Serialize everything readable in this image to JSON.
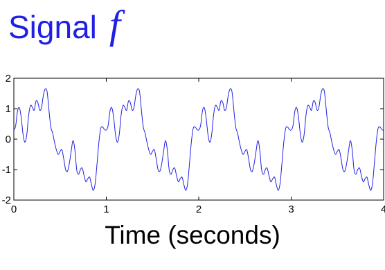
{
  "chart_data": {
    "type": "line",
    "title": "Signal",
    "title_symbol": "f",
    "xlabel": "Time (seconds)",
    "ylabel": "",
    "xlim": [
      0,
      4
    ],
    "ylim": [
      -2,
      2
    ],
    "xticks": [
      0,
      1,
      2,
      3,
      4
    ],
    "xtick_labels": [
      "0",
      "1",
      "2",
      "3",
      "4"
    ],
    "yticks": [
      2,
      1,
      0,
      -1,
      -2
    ],
    "ytick_labels": [
      "2",
      "1",
      "0",
      "-1",
      "-2"
    ],
    "grid": false,
    "line_color": "#1f1fe6",
    "series": [
      {
        "x": [
          0,
          0.02,
          0.04,
          0.06,
          0.08,
          0.1,
          0.12,
          0.14,
          0.16,
          0.18,
          0.2,
          0.22,
          0.24,
          0.26,
          0.28,
          0.3,
          0.32,
          0.34,
          0.36,
          0.38,
          0.4,
          0.42,
          0.44,
          0.46,
          0.48,
          0.5,
          0.52,
          0.54,
          0.56,
          0.58,
          0.6,
          0.62,
          0.64,
          0.66,
          0.68,
          0.7,
          0.72,
          0.74,
          0.76,
          0.78,
          0.8,
          0.82,
          0.84,
          0.86,
          0.88,
          0.9,
          0.92,
          0.94,
          0.96,
          0.98,
          1.0
        ],
        "y": [
          0.3,
          0.45,
          0.92,
          1.03,
          0.7,
          0.15,
          -0.1,
          0.15,
          0.78,
          1.1,
          1.05,
          0.95,
          1.25,
          1.2,
          0.95,
          1.05,
          1.45,
          1.65,
          1.55,
          0.95,
          0.4,
          0.2,
          -0.1,
          -0.35,
          -0.5,
          -0.4,
          -0.35,
          -0.65,
          -1.0,
          -1.05,
          -0.8,
          -0.4,
          -0.05,
          -0.35,
          -1.0,
          -1.15,
          -1.0,
          -0.95,
          -1.2,
          -1.4,
          -1.3,
          -1.25,
          -1.5,
          -1.68,
          -1.45,
          -0.8,
          -0.1,
          0.35,
          0.4,
          0.32,
          0.3
        ]
      }
    ],
    "period": 1
  }
}
